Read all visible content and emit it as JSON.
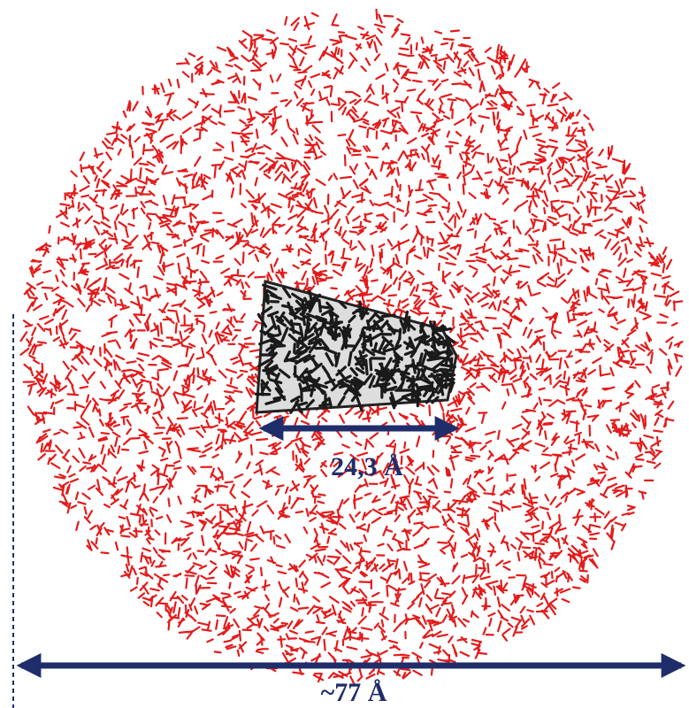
{
  "labels": {
    "inner_width": "24,3 Å",
    "outer_width": "~77 Å"
  }
}
